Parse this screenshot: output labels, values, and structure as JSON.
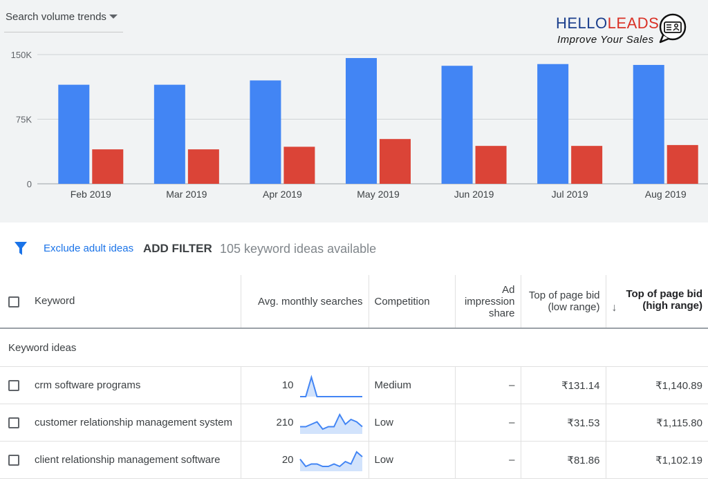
{
  "header": {
    "selector_label": "Search volume trends"
  },
  "logo": {
    "brand_part1": "HELLO",
    "brand_part2": "LEADS",
    "tagline": "Improve Your Sales"
  },
  "chart_data": {
    "type": "bar",
    "categories": [
      "Feb 2019",
      "Mar 2019",
      "Apr 2019",
      "May 2019",
      "Jun 2019",
      "Jul 2019",
      "Aug 2019"
    ],
    "series": [
      {
        "values": [
          115000,
          115000,
          120000,
          146000,
          137000,
          139000,
          138000
        ],
        "color": "#4285f4"
      },
      {
        "values": [
          40000,
          40000,
          43000,
          52000,
          44000,
          44000,
          45000
        ],
        "color": "#db4437"
      }
    ],
    "y_ticks": [
      "0",
      "75K",
      "150K"
    ],
    "ylim": [
      0,
      150000
    ],
    "grid": true
  },
  "filters": {
    "exclude_label": "Exclude adult ideas",
    "add_filter_label": "ADD FILTER",
    "available_text": "105 keyword ideas available"
  },
  "table": {
    "columns": {
      "keyword": "Keyword",
      "avg": "Avg. monthly searches",
      "competition": "Competition",
      "ad_share": "Ad impression share",
      "low_bid": "Top of page bid (low range)",
      "high_bid": "Top of page bid (high range)"
    },
    "group_label": "Keyword ideas",
    "rows": [
      {
        "keyword": "crm software programs",
        "avg": "10",
        "trend": [
          0,
          0,
          1,
          0,
          0,
          0,
          0,
          0,
          0,
          0,
          0,
          0
        ],
        "competition": "Medium",
        "ad_share": "–",
        "low_bid": "₹131.14",
        "high_bid": "₹1,140.89"
      },
      {
        "keyword": "customer relationship management system",
        "avg": "210",
        "trend": [
          3,
          3,
          4,
          5,
          2,
          3,
          3,
          8,
          4,
          6,
          5,
          3
        ],
        "competition": "Low",
        "ad_share": "–",
        "low_bid": "₹31.53",
        "high_bid": "₹1,115.80"
      },
      {
        "keyword": "client relationship management software",
        "avg": "20",
        "trend": [
          5,
          2,
          3,
          3,
          2,
          2,
          3,
          2,
          4,
          3,
          8,
          6
        ],
        "competition": "Low",
        "ad_share": "–",
        "low_bid": "₹81.86",
        "high_bid": "₹1,102.19"
      }
    ]
  }
}
